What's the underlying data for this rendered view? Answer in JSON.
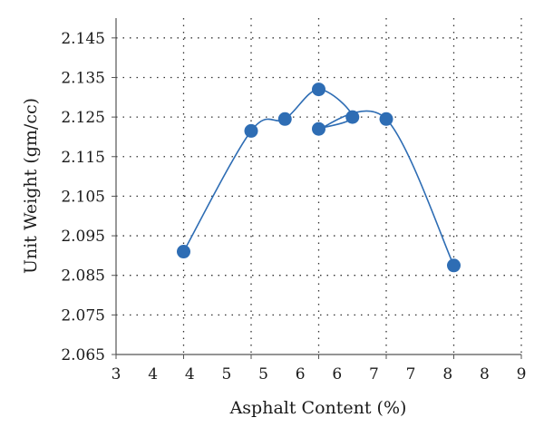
{
  "chart_data": {
    "type": "scatter",
    "title": "",
    "xlabel": "Asphalt Content (%)",
    "ylabel": "Unit Weight (gm/cc)",
    "xlim": [
      3,
      9
    ],
    "ylim": [
      2.065,
      2.15
    ],
    "x_ticks": [
      "3",
      "4",
      "5",
      "6",
      "7",
      "8",
      "9"
    ],
    "y_ticks": [
      "2.065",
      "2.075",
      "2.085",
      "2.095",
      "2.105",
      "2.115",
      "2.125",
      "2.135",
      "2.145"
    ],
    "grid": true,
    "legend": "none",
    "smoothed_line": true,
    "x_axis_tick_labels_order": [
      "3",
      "4",
      "4",
      "5",
      "5",
      "6",
      "6",
      "7",
      "7",
      "8",
      "8",
      "9"
    ],
    "series": [
      {
        "color": "#2e6db4",
        "points": [
          {
            "x": 4.0,
            "y": 2.091
          },
          {
            "x": 5.0,
            "y": 2.1215
          },
          {
            "x": 5.5,
            "y": 2.1245
          },
          {
            "x": 6.0,
            "y": 2.132
          },
          {
            "x": 6.5,
            "y": 2.125
          },
          {
            "x": 6.0,
            "y": 2.122
          },
          {
            "x": 7.0,
            "y": 2.1245
          },
          {
            "x": 8.0,
            "y": 2.0875
          }
        ]
      }
    ]
  }
}
